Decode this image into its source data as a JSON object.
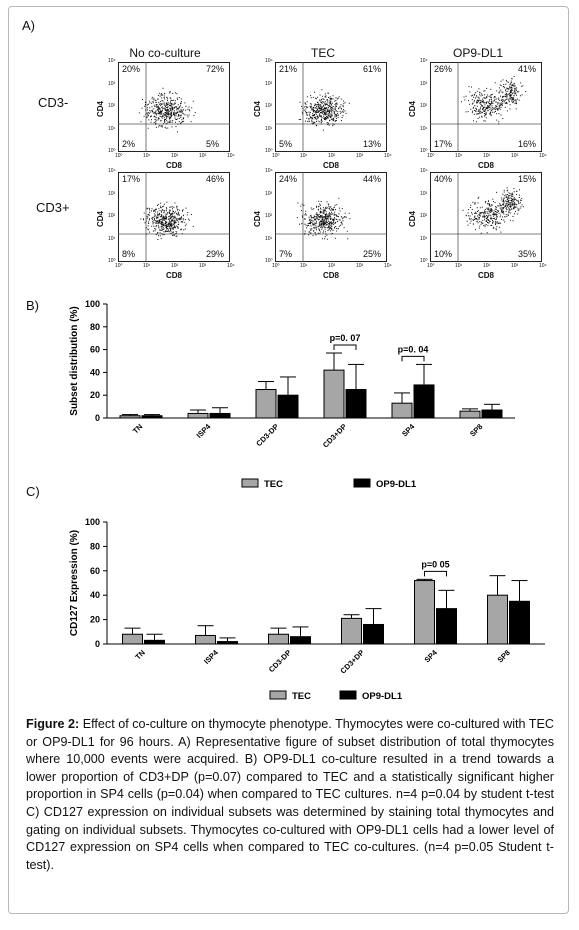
{
  "panel_a": {
    "letter": "A)",
    "columns": [
      "No co-culture",
      "TEC",
      "OP9-DL1"
    ],
    "rows": [
      "CD3-",
      "CD3+"
    ],
    "x_axis_label": "CD8",
    "y_axis_label": "CD4",
    "tick_labels": [
      "10⁰",
      "10¹",
      "10²",
      "10³",
      "10⁴"
    ],
    "plots": [
      {
        "row": 0,
        "col": 0,
        "ul": "20%",
        "ur": "72%",
        "ll": "2%",
        "lr": "5%"
      },
      {
        "row": 0,
        "col": 1,
        "ul": "21%",
        "ur": "61%",
        "ll": "5%",
        "lr": "13%"
      },
      {
        "row": 0,
        "col": 2,
        "ul": "26%",
        "ur": "41%",
        "ll": "17%",
        "lr": "16%"
      },
      {
        "row": 1,
        "col": 0,
        "ul": "17%",
        "ur": "46%",
        "ll": "8%",
        "lr": "29%"
      },
      {
        "row": 1,
        "col": 1,
        "ul": "24%",
        "ur": "44%",
        "ll": "7%",
        "lr": "25%"
      },
      {
        "row": 1,
        "col": 2,
        "ul": "40%",
        "ur": "15%",
        "ll": "10%",
        "lr": "35%"
      }
    ]
  },
  "chart_data": [
    {
      "type": "bar",
      "panel": "B)",
      "title": "",
      "ylabel": "Subset distribution (%)",
      "xlabel": "",
      "ylim": [
        0,
        100
      ],
      "yticks": [
        0,
        20,
        40,
        60,
        80,
        100
      ],
      "categories": [
        "TN",
        "ISP4",
        "CD3-DP",
        "CD3+DP",
        "SP4",
        "SP8"
      ],
      "series": [
        {
          "name": "TEC",
          "color": "#a6a6a6",
          "values": [
            2,
            4,
            25,
            42,
            13,
            6
          ],
          "errors": [
            1,
            3,
            7,
            15,
            9,
            2
          ]
        },
        {
          "name": "OP9-DL1",
          "color": "#000000",
          "values": [
            2,
            4,
            20,
            25,
            29,
            7
          ],
          "errors": [
            1,
            5,
            16,
            22,
            18,
            5
          ]
        }
      ],
      "annotations": [
        {
          "text": "p=0. 07",
          "category": "CD3+DP"
        },
        {
          "text": "p=0. 04",
          "category": "SP4"
        }
      ],
      "legend": "bottom"
    },
    {
      "type": "bar",
      "panel": "C)",
      "title": "",
      "ylabel": "CD127 Expression (%)",
      "xlabel": "",
      "ylim": [
        0,
        100
      ],
      "yticks": [
        0,
        20,
        40,
        60,
        80,
        100
      ],
      "categories": [
        "TN",
        "ISP4",
        "CD3-DP",
        "CD3+DP",
        "SP4",
        "SP8"
      ],
      "series": [
        {
          "name": "TEC",
          "color": "#a6a6a6",
          "values": [
            8,
            7,
            8,
            21,
            52,
            40
          ],
          "errors": [
            5,
            8,
            5,
            3,
            1,
            16
          ]
        },
        {
          "name": "OP9-DL1",
          "color": "#000000",
          "values": [
            3,
            2,
            6,
            16,
            29,
            35
          ],
          "errors": [
            5,
            3,
            8,
            13,
            15,
            17
          ]
        }
      ],
      "annotations": [
        {
          "text": "p=0 05",
          "category": "SP4"
        }
      ],
      "legend": "bottom"
    }
  ],
  "caption": {
    "label": "Figure 2:",
    "text": " Effect of co-culture on thymocyte phenotype. Thymocytes were co-cultured with TEC or OP9-DL1 for 96 hours. A) Representative figure of subset distribution of total thymocytes where 10,000 events were acquired. B) OP9-DL1 co-culture resulted in a trend towards a lower proportion of CD3+DP (p=0.07) compared to TEC and a statistically significant higher proportion in SP4 cells (p=0.04) when compared to TEC cultures. n=4 p=0.04 by student t-test C) CD127 expression on individual subsets was determined by staining total thymocytes and gating on individual subsets. Thymocytes co-cultured with OP9-DL1 cells had a lower level of CD127 expression on SP4 cells when compared to TEC co-cultures. (n=4 p=0.05 Student t-test)."
  }
}
